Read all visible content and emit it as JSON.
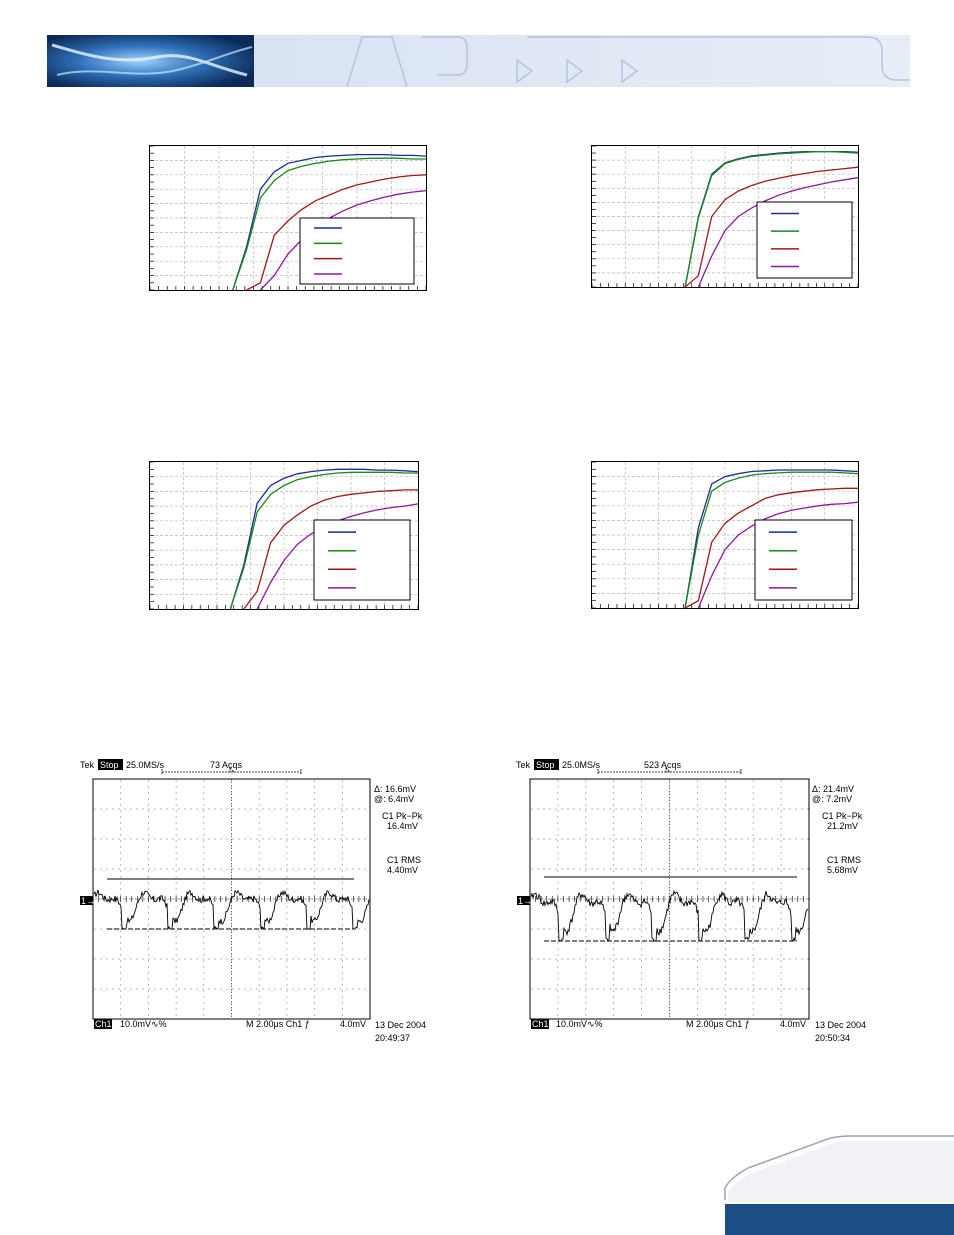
{
  "chart_data": [
    {
      "type": "line",
      "x": [
        0,
        5,
        10,
        15,
        20,
        25,
        30,
        35,
        40,
        45,
        50,
        55,
        60,
        65,
        70,
        75,
        80,
        85,
        90,
        95,
        100
      ],
      "ylim": [
        0,
        100
      ],
      "series": [
        {
          "color": "#1c2c9c",
          "values": [
            0,
            0,
            0,
            0,
            0,
            0,
            0,
            30,
            70,
            82,
            88,
            90,
            92,
            93,
            93.5,
            94,
            94,
            94,
            93.5,
            93.5,
            93
          ]
        },
        {
          "color": "#1a8a1a",
          "values": [
            0,
            0,
            0,
            0,
            0,
            0,
            0,
            28,
            64,
            76,
            83,
            86,
            88,
            89.5,
            90.5,
            91,
            91.5,
            91.5,
            91.5,
            91,
            91
          ]
        },
        {
          "color": "#a01818",
          "values": [
            0,
            0,
            0,
            0,
            0,
            0,
            0,
            0,
            5,
            38,
            48,
            56,
            62,
            66,
            70,
            73,
            75,
            77,
            78.5,
            79.5,
            80
          ]
        },
        {
          "color": "#8a1a9a",
          "values": [
            0,
            0,
            0,
            0,
            0,
            0,
            0,
            0,
            0,
            10,
            25,
            35,
            43,
            50,
            55,
            59,
            62,
            64.5,
            66.5,
            68,
            69
          ]
        }
      ],
      "legend": "bottom-right",
      "grid": true
    },
    {
      "type": "line",
      "x": [
        0,
        5,
        10,
        15,
        20,
        25,
        30,
        35,
        40,
        45,
        50,
        55,
        60,
        65,
        70,
        75,
        80,
        85,
        90,
        95,
        100
      ],
      "ylim": [
        0,
        100
      ],
      "series": [
        {
          "color": "#1c2c9c",
          "values": [
            0,
            0,
            0,
            0,
            0,
            0,
            0,
            0,
            50,
            80,
            88,
            91,
            93,
            94,
            95,
            95.5,
            96,
            96,
            96,
            96,
            95.5
          ]
        },
        {
          "color": "#1a8a1a",
          "values": [
            0,
            0,
            0,
            0,
            0,
            0,
            0,
            0,
            49,
            79,
            87.5,
            90.5,
            92.5,
            93.5,
            94.5,
            95,
            95.5,
            96,
            96,
            95.5,
            95
          ]
        },
        {
          "color": "#a01818",
          "values": [
            0,
            0,
            0,
            0,
            0,
            0,
            0,
            0,
            8,
            50,
            62,
            68,
            72,
            75,
            77,
            79,
            80.5,
            82,
            83,
            84,
            85
          ]
        },
        {
          "color": "#8a1a9a",
          "values": [
            0,
            0,
            0,
            0,
            0,
            0,
            0,
            0,
            0,
            22,
            40,
            50,
            56,
            61,
            65,
            68,
            70.5,
            72.5,
            74.5,
            76,
            77.5
          ]
        }
      ],
      "legend": "bottom-right",
      "grid": true
    },
    {
      "type": "line",
      "x": [
        0,
        5,
        10,
        15,
        20,
        25,
        30,
        35,
        40,
        45,
        50,
        55,
        60,
        65,
        70,
        75,
        80,
        85,
        90,
        95,
        100
      ],
      "ylim": [
        0,
        100
      ],
      "series": [
        {
          "color": "#1c2c9c",
          "values": [
            0,
            0,
            0,
            0,
            0,
            0,
            0,
            30,
            72,
            84,
            89,
            92,
            93.5,
            94.5,
            95,
            95,
            95,
            94.5,
            94.5,
            94,
            93.5
          ]
        },
        {
          "color": "#1a8a1a",
          "values": [
            0,
            0,
            0,
            0,
            0,
            0,
            0,
            28,
            66,
            78,
            84,
            88,
            90,
            91.5,
            92.5,
            93,
            93,
            93,
            93,
            92.5,
            92.5
          ]
        },
        {
          "color": "#a01818",
          "values": [
            0,
            0,
            0,
            0,
            0,
            0,
            0,
            0,
            12,
            45,
            57,
            64,
            70,
            74,
            76.5,
            78,
            79,
            80,
            80.5,
            81,
            81
          ]
        },
        {
          "color": "#8a1a9a",
          "values": [
            0,
            0,
            0,
            0,
            0,
            0,
            0,
            0,
            0,
            18,
            33,
            44,
            51,
            56,
            60,
            63,
            65.5,
            67.5,
            69,
            70,
            71.5
          ]
        }
      ],
      "legend": "bottom-right",
      "grid": true
    },
    {
      "type": "line",
      "x": [
        0,
        5,
        10,
        15,
        20,
        25,
        30,
        35,
        40,
        45,
        50,
        55,
        60,
        65,
        70,
        75,
        80,
        85,
        90,
        95,
        100
      ],
      "ylim": [
        0,
        100
      ],
      "series": [
        {
          "color": "#1c2c9c",
          "values": [
            0,
            0,
            0,
            0,
            0,
            0,
            0,
            0,
            55,
            85,
            90,
            92,
            93.5,
            94,
            94.5,
            94.5,
            94.5,
            94.5,
            94.5,
            94,
            93.5
          ]
        },
        {
          "color": "#1a8a1a",
          "values": [
            0,
            0,
            0,
            0,
            0,
            0,
            0,
            0,
            50,
            80,
            86,
            89,
            91,
            92,
            92.5,
            93,
            93,
            93,
            93,
            92.5,
            92
          ]
        },
        {
          "color": "#a01818",
          "values": [
            0,
            0,
            0,
            0,
            0,
            0,
            0,
            0,
            5,
            45,
            58,
            65,
            70,
            75,
            77.5,
            79,
            80,
            81,
            81.5,
            82,
            82
          ]
        },
        {
          "color": "#8a1a9a",
          "values": [
            0,
            0,
            0,
            0,
            0,
            0,
            0,
            0,
            0,
            22,
            40,
            50,
            56,
            61,
            64.5,
            67,
            68.5,
            70,
            71,
            71.5,
            72.5
          ]
        }
      ],
      "legend": "bottom-right",
      "grid": true
    }
  ],
  "scopes": [
    {
      "brand": "Tek",
      "state": "Stop",
      "rate": "25.0MS/s",
      "acqs": "73 Acqs",
      "delta": "Δ: 16.6mV",
      "at": "@: 6.4mV",
      "pk_label": "C1 Pk−Pk",
      "pk_value": "16.4mV",
      "rms_label": "C1 RMS",
      "rms_value": "4.40mV",
      "ch": "Ch1",
      "scale": "10.0mV∿%",
      "timebase": "M 2.00μs  Ch1  ƒ",
      "trigger": "4.0mV",
      "date": "13 Dec 2004",
      "time": "20:49:37",
      "marker": "1→"
    },
    {
      "brand": "Tek",
      "state": "Stop",
      "rate": "25.0MS/s",
      "acqs": "523 Acqs",
      "delta": "Δ: 21.4mV",
      "at": "@: 7.2mV",
      "pk_label": "C1 Pk−Pk",
      "pk_value": "21.2mV",
      "rms_label": "C1 RMS",
      "rms_value": "5.68mV",
      "ch": "Ch1",
      "scale": "10.0mV∿%",
      "timebase": "M 2.00μs  Ch1  ƒ",
      "trigger": "4.0mV",
      "date": "13 Dec 2004",
      "time": "20:50:34",
      "marker": "1→"
    }
  ]
}
